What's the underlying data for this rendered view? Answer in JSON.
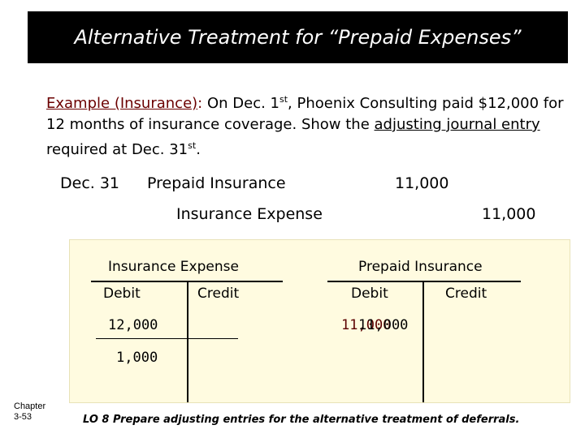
{
  "title": "Alternative Treatment for “Prepaid Expenses”",
  "example": {
    "label": "Example (Insurance)",
    "colon": ":",
    "text_1": " On Dec. 1",
    "sup_1": "st",
    "text_2": ", Phoenix Consulting paid $12,000 for 12 months of insurance coverage.  Show the ",
    "emphasis": "adjusting journal entry",
    "text_3": " required at Dec. 31",
    "sup_2": "st",
    "text_4": "."
  },
  "journal": {
    "date": "Dec. 31",
    "debit_account": "Prepaid Insurance",
    "debit_amount": "11,000",
    "credit_account": "Insurance Expense",
    "credit_amount": "11,000"
  },
  "t_accounts": [
    {
      "title": "Insurance Expense",
      "debit_label": "Debit",
      "credit_label": "Credit",
      "debit_entry": "12,000",
      "balance": "1,000"
    },
    {
      "title": "Prepaid Insurance",
      "debit_label": "Debit",
      "credit_label": "Credit",
      "debit_entry_a": "11,000",
      "debit_entry_b": "11,000"
    }
  ],
  "footer": {
    "chapter_label": "Chapter",
    "chapter_page": "3-53",
    "learning_objective": "LO 8  Prepare adjusting entries for the alternative treatment of deferrals."
  }
}
